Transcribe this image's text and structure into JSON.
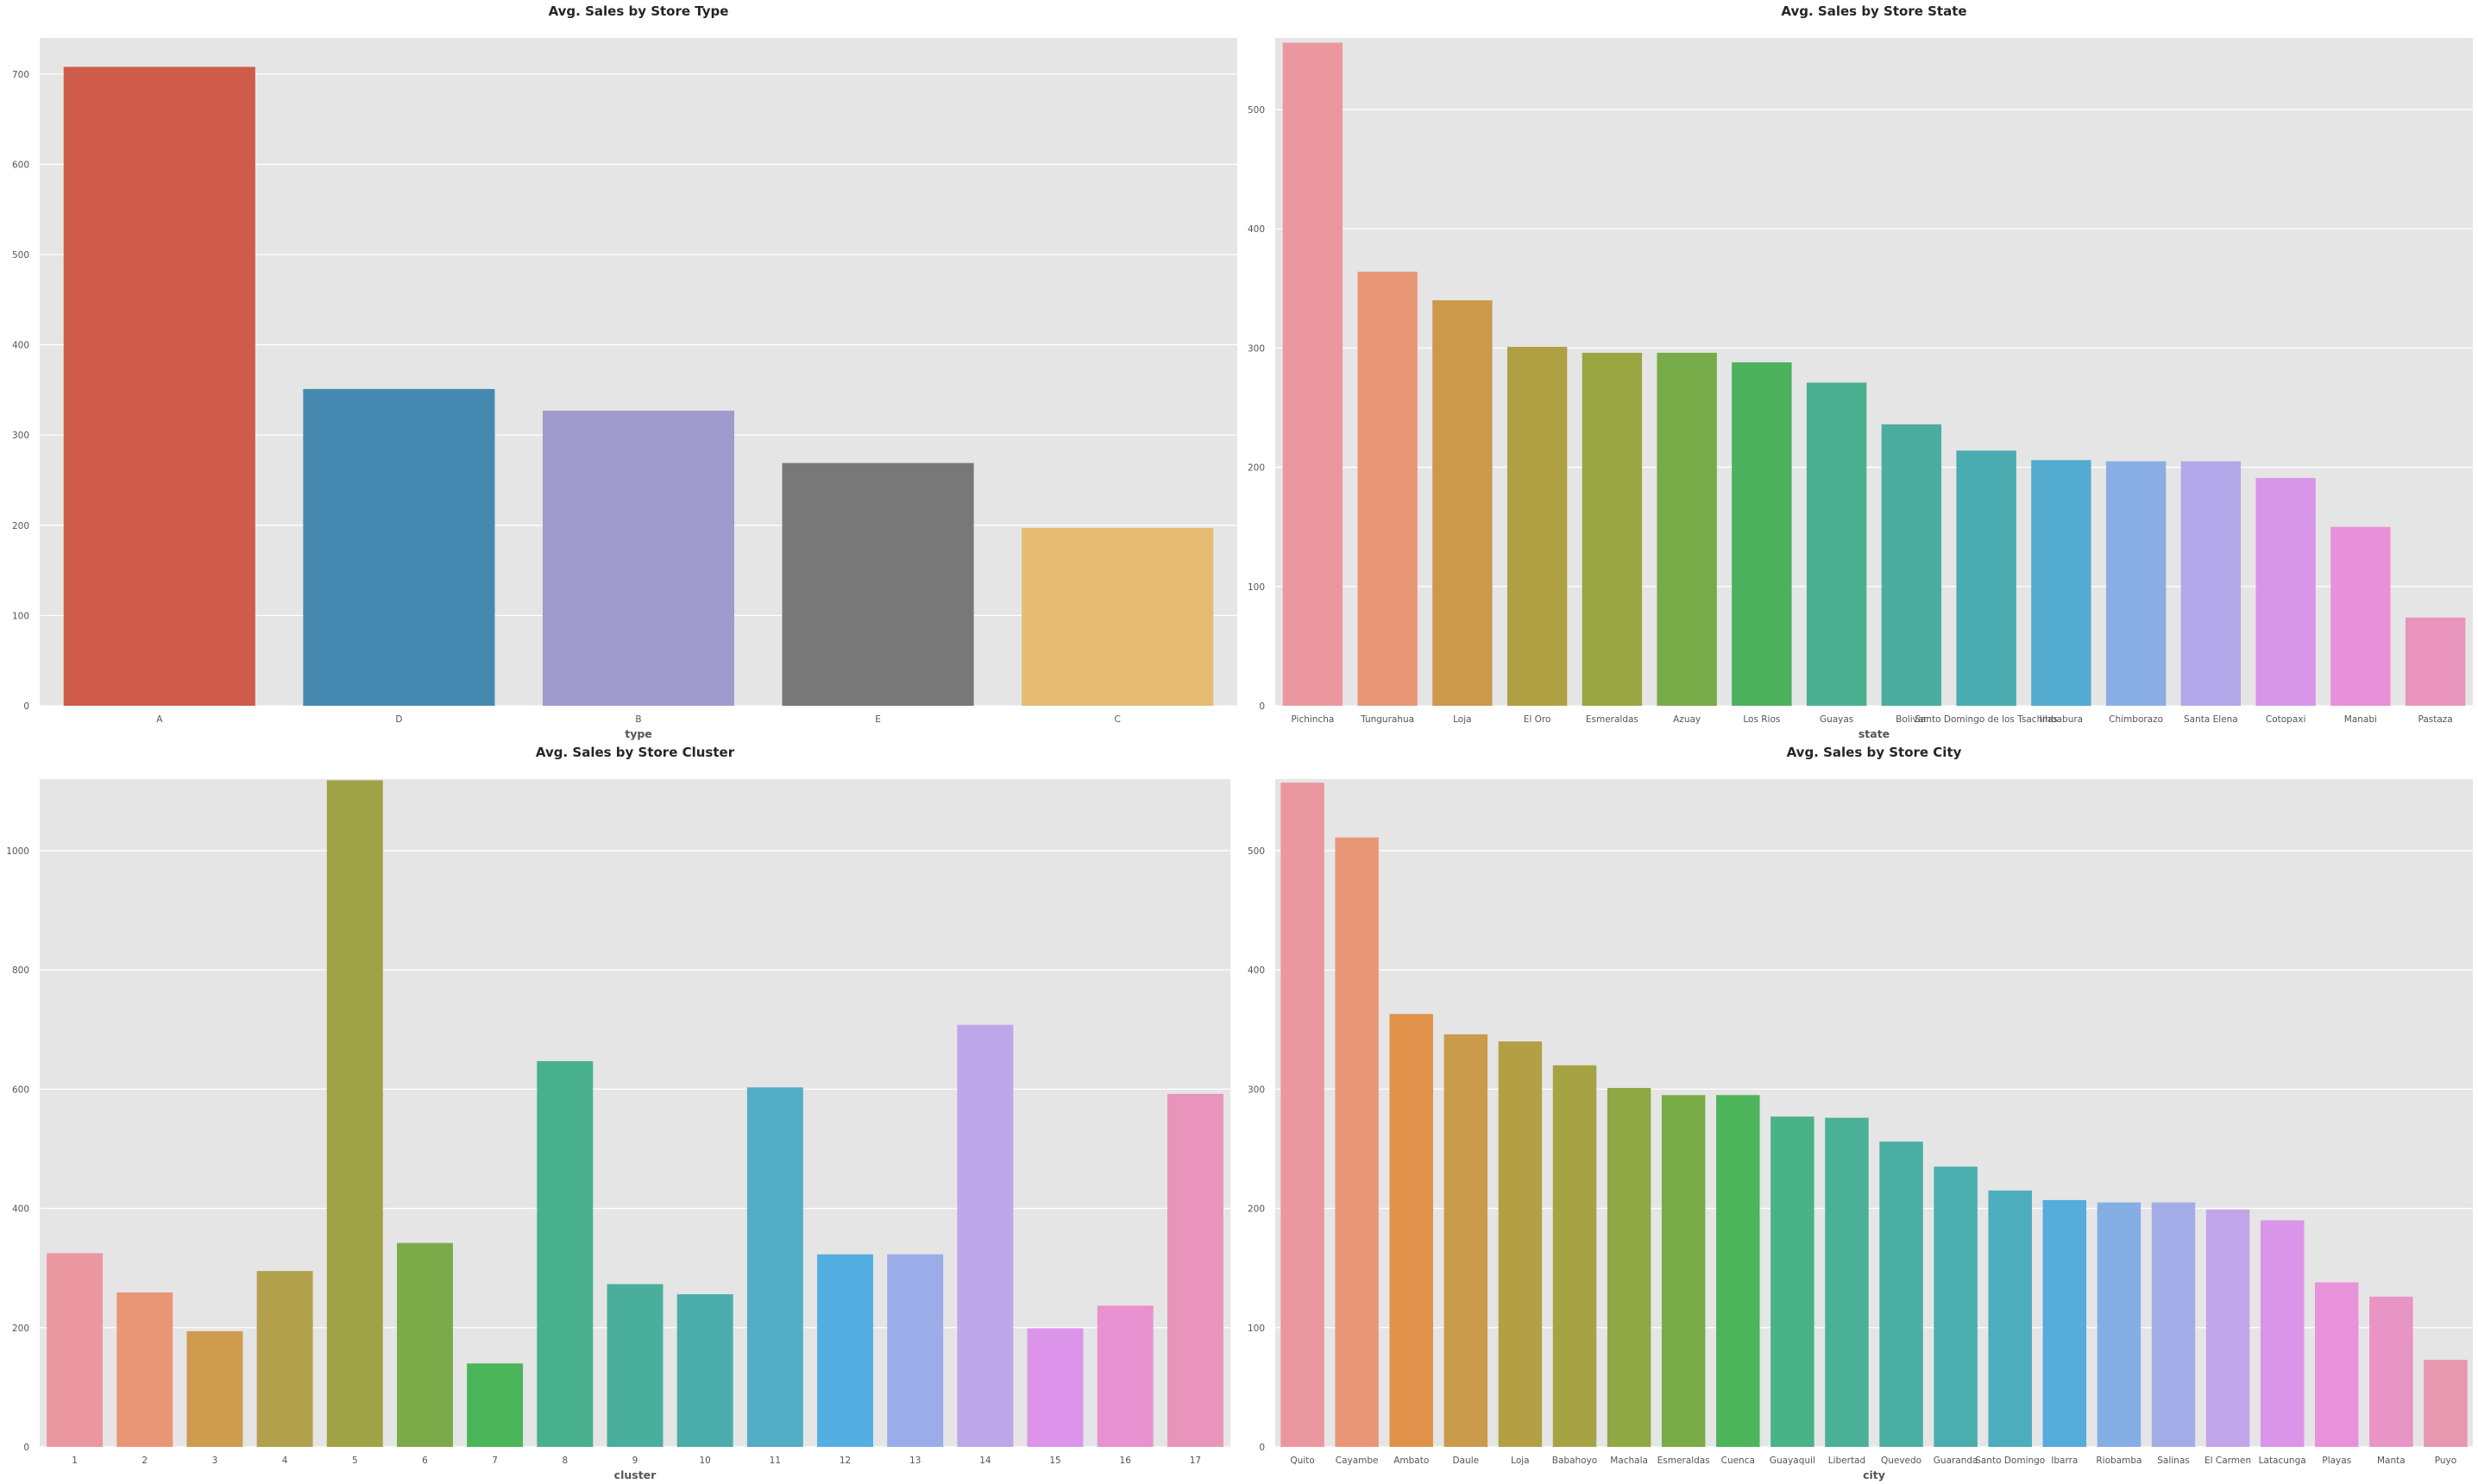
{
  "chart_data": [
    {
      "type": "bar",
      "title": "Avg. Sales by Store Type",
      "xlabel": "type",
      "ylabel": "",
      "categories": [
        "A",
        "D",
        "B",
        "E",
        "C"
      ],
      "values": [
        708,
        351,
        327,
        269,
        197
      ],
      "colors": [
        "#d05c4b",
        "#4689b0",
        "#a09acc",
        "#787878",
        "#e6bc72"
      ],
      "ylim": [
        0,
        740
      ],
      "yticks": [
        0,
        100,
        200,
        300,
        400,
        500,
        600,
        700
      ],
      "grid": true
    },
    {
      "type": "bar",
      "title": "Avg. Sales by Store State",
      "xlabel": "state",
      "ylabel": "",
      "categories": [
        "Pichincha",
        "Tungurahua",
        "Loja",
        "El Oro",
        "Esmeraldas",
        "Azuay",
        "Los Rios",
        "Guayas",
        "Bolivar",
        "Santo Domingo de los Tsachilas",
        "Imbabura",
        "Chimborazo",
        "Santa Elena",
        "Cotopaxi",
        "Manabi",
        "Pastaza"
      ],
      "values": [
        556,
        364,
        340,
        301,
        296,
        296,
        288,
        271,
        236,
        214,
        206,
        205,
        205,
        191,
        150,
        74
      ],
      "colors": [
        "#eb97a0",
        "#e99677",
        "#cb984c",
        "#b0a044",
        "#99a541",
        "#76ab47",
        "#4cb25e",
        "#4aaf8f",
        "#4aad9e",
        "#4aabb0",
        "#53acd0",
        "#89ade5",
        "#b3a8ea",
        "#d896e8",
        "#e891d9",
        "#e894bd"
      ],
      "ylim": [
        0,
        560
      ],
      "yticks": [
        0,
        100,
        200,
        300,
        400,
        500
      ],
      "grid": true
    },
    {
      "type": "bar",
      "title": "Avg. Sales by Store Cluster",
      "xlabel": "cluster",
      "ylabel": "",
      "categories": [
        "1",
        "2",
        "3",
        "4",
        "5",
        "6",
        "7",
        "8",
        "9",
        "10",
        "11",
        "12",
        "13",
        "14",
        "15",
        "16",
        "17"
      ],
      "values": [
        325,
        259,
        194,
        295,
        1118,
        342,
        140,
        647,
        273,
        256,
        603,
        323,
        323,
        708,
        199,
        237,
        592
      ],
      "colors": [
        "#eb97a0",
        "#e99677",
        "#cf9b4f",
        "#b3a04c",
        "#9fa245",
        "#7bab48",
        "#4ab55a",
        "#48b08c",
        "#4aae9c",
        "#4aadab",
        "#51aec5",
        "#55aee2",
        "#9bade8",
        "#bea6ea",
        "#dc94ea",
        "#e892d1",
        "#e894bb"
      ],
      "ylim": [
        0,
        1120
      ],
      "yticks": [
        0,
        200,
        400,
        600,
        800,
        1000
      ],
      "grid": true
    },
    {
      "type": "bar",
      "title": "Avg. Sales by Store City",
      "xlabel": "city",
      "ylabel": "",
      "categories": [
        "Quito",
        "Cayambe",
        "Ambato",
        "Daule",
        "Loja",
        "Babahoyo",
        "Machala",
        "Esmeraldas",
        "Cuenca",
        "Guayaquil",
        "Libertad",
        "Quevedo",
        "Guaranda",
        "Santo Domingo",
        "Ibarra",
        "Riobamba",
        "Salinas",
        "El Carmen",
        "Latacunga",
        "Playas",
        "Manta",
        "Puyo"
      ],
      "values": [
        557,
        511,
        363,
        346,
        340,
        320,
        301,
        295,
        295,
        277,
        276,
        256,
        235,
        215,
        207,
        205,
        205,
        199,
        190,
        138,
        126,
        73
      ],
      "colors": [
        "#eb97a0",
        "#e99677",
        "#e0924a",
        "#cb9b4c",
        "#b3a044",
        "#a5a344",
        "#91a744",
        "#79ab47",
        "#4cb45a",
        "#4ab287",
        "#4ab096",
        "#4aaea3",
        "#4aaeaf",
        "#4cadbc",
        "#54addb",
        "#85aee5",
        "#a2ade8",
        "#c2a6ea",
        "#db95e8",
        "#e892d9",
        "#e894c4",
        "#e897b0"
      ],
      "ylim": [
        0,
        560
      ],
      "yticks": [
        0,
        100,
        200,
        300,
        400,
        500
      ],
      "grid": true
    }
  ]
}
